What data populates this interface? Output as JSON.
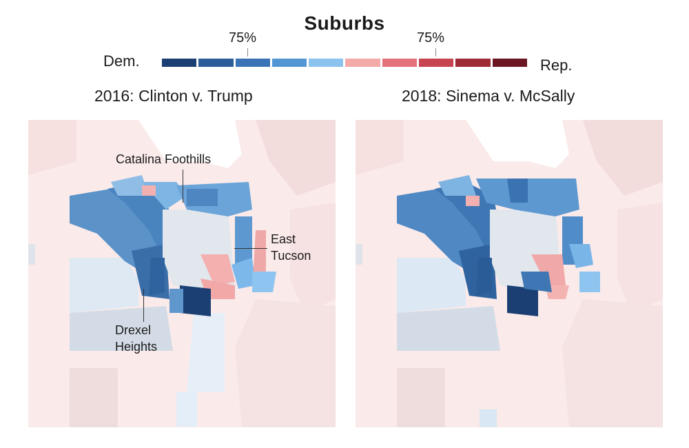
{
  "title": "Suburbs",
  "legend": {
    "dem_label": "Dem.",
    "rep_label": "Rep.",
    "tick_left": "75%",
    "tick_right": "75%",
    "swatches": [
      "#1b3f73",
      "#2c5d98",
      "#3a73b6",
      "#5396d4",
      "#8cc3ee",
      "#f4aaa8",
      "#e4727a",
      "#c74550",
      "#9f2b36",
      "#6b1622"
    ]
  },
  "maps": [
    {
      "title": "2016: Clinton v. Trump",
      "labels": [
        "Catalina Foothills",
        "East",
        "Tucson",
        "Drexel",
        "Heights"
      ]
    },
    {
      "title": "2018: Sinema v. McSally"
    }
  ],
  "colors": {
    "background_rep": "#fbeaea",
    "outer_rep": "#f4dcdc",
    "city": "#e3e8ef",
    "light_blue": "#dce9f4",
    "grey_blue": "#d3dce6"
  }
}
